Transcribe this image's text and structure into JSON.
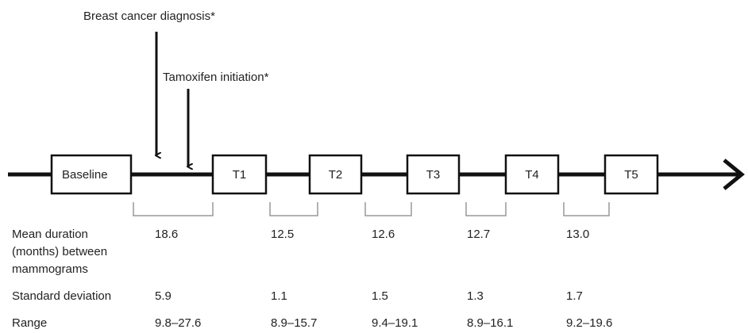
{
  "annotations": {
    "diagnosis": "Breast cancer diagnosis*",
    "tamoxifen": "Tamoxifen initiation*"
  },
  "nodes": [
    {
      "label": "Baseline"
    },
    {
      "label": "T1"
    },
    {
      "label": "T2"
    },
    {
      "label": "T3"
    },
    {
      "label": "T4"
    },
    {
      "label": "T5"
    }
  ],
  "table": {
    "rows": [
      {
        "label_lines": [
          "Mean duration",
          "(months) between",
          "mammograms"
        ],
        "values": [
          "18.6",
          "12.5",
          "12.6",
          "12.7",
          "13.0"
        ]
      },
      {
        "label_lines": [
          "Standard deviation"
        ],
        "values": [
          "5.9",
          "1.1",
          "1.5",
          "1.3",
          "1.7"
        ]
      },
      {
        "label_lines": [
          "Range"
        ],
        "values": [
          "9.8–27.6",
          "8.9–15.7",
          "9.4–19.1",
          "8.9–16.1",
          "9.2–19.6"
        ]
      }
    ]
  }
}
